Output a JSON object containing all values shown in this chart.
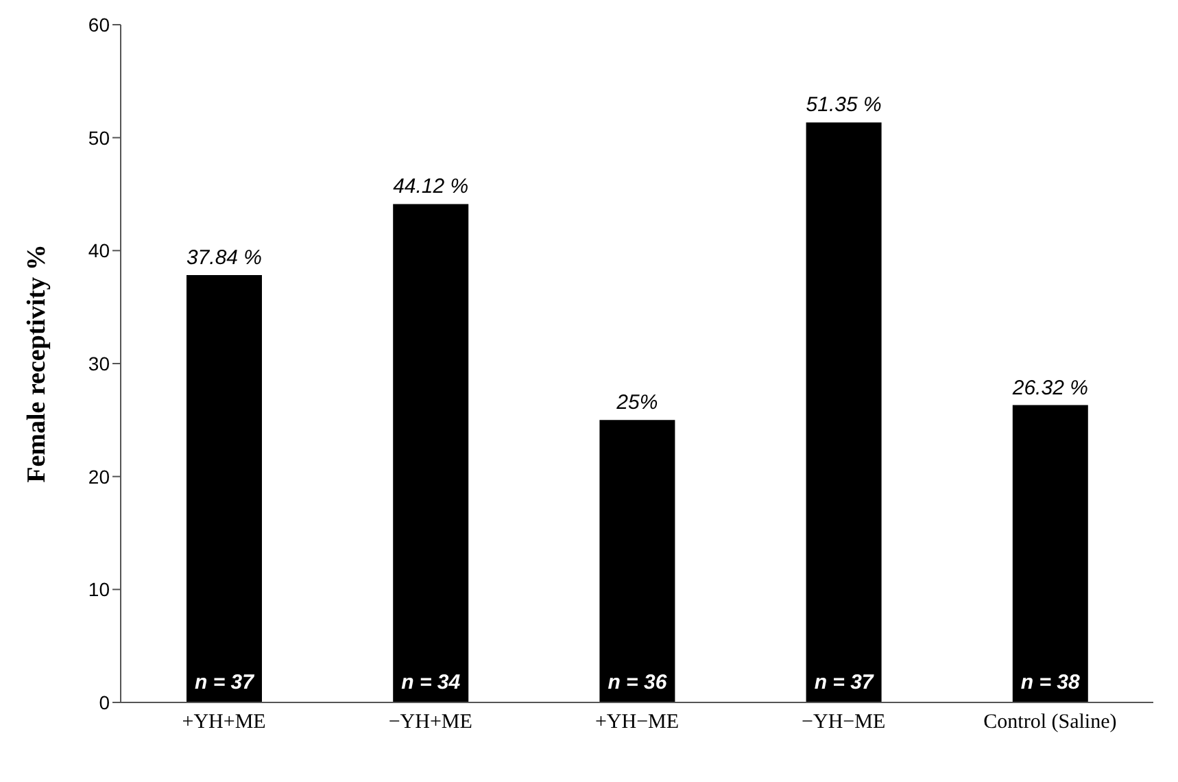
{
  "chart_data": {
    "type": "bar",
    "ylabel": "Female receptivity %",
    "categories": [
      "+YH+ME",
      "−YH+ME",
      "+YH−ME",
      "−YH−ME",
      "Control (Saline)"
    ],
    "values": [
      37.84,
      44.12,
      25,
      51.35,
      26.32
    ],
    "value_labels": [
      "37.84 %",
      "44.12 %",
      "25%",
      "51.35 %",
      "26.32 %"
    ],
    "color": "#000000",
    "ylim": [
      0,
      60
    ],
    "yticks": [
      0,
      10,
      20,
      30,
      40,
      50,
      60
    ],
    "grid": false,
    "legend": false,
    "annotations": [
      {
        "text": "n = 37",
        "x": "+YH+ME",
        "y": 0
      },
      {
        "text": "n = 34",
        "x": "−YH+ME",
        "y": 0
      },
      {
        "text": "n = 36",
        "x": "+YH−ME",
        "y": 0
      },
      {
        "text": "n = 37",
        "x": "−YH−ME",
        "y": 0
      },
      {
        "text": "n = 38",
        "x": "Control (Saline)",
        "y": 0
      }
    ]
  }
}
